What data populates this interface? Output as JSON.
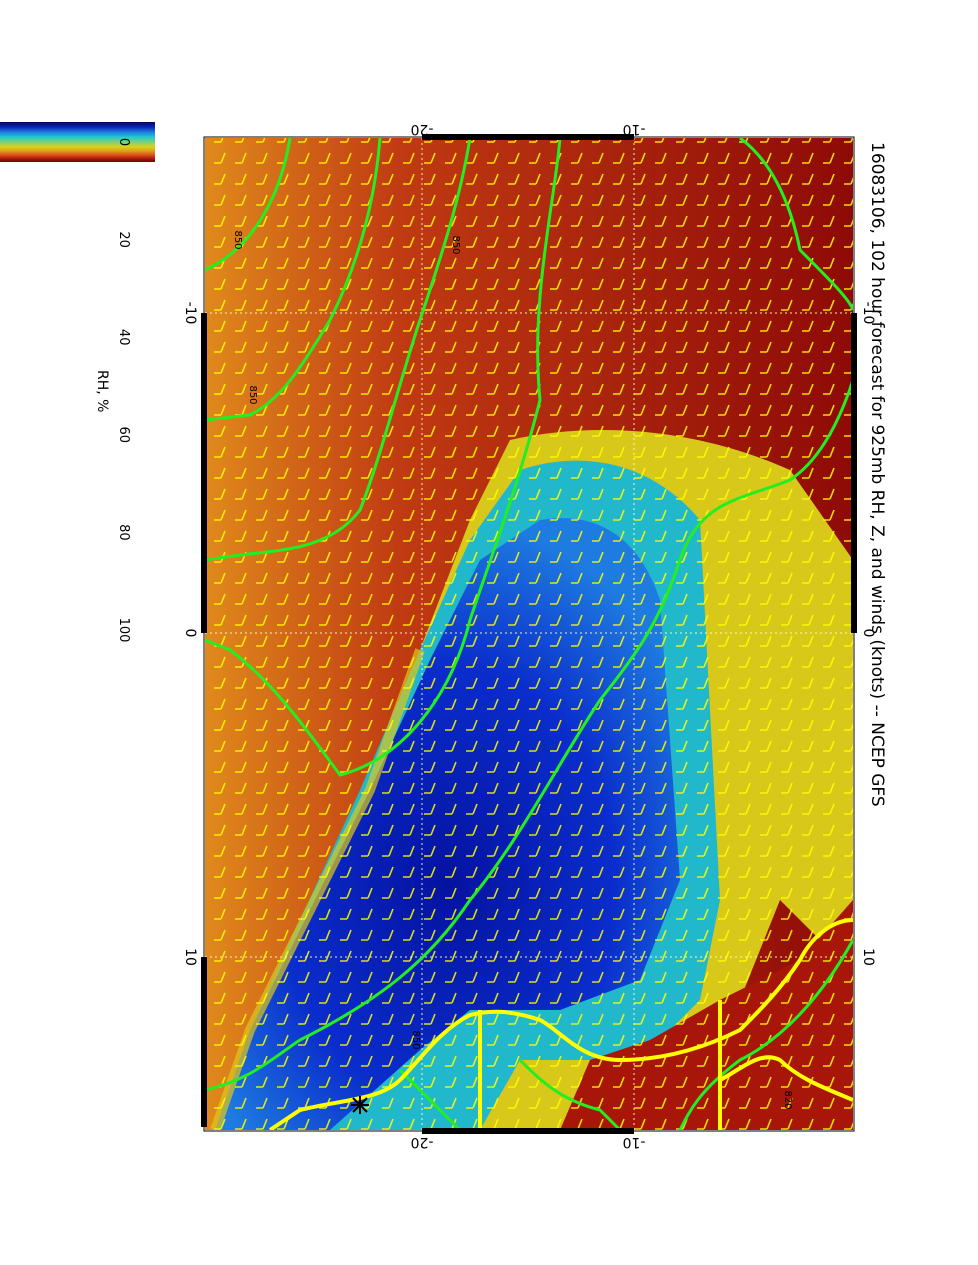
{
  "title": "16083106, 102 hour forecast for 925mb RH, Z, and winds (knots) -- NCEP GFS",
  "colorbar": {
    "label": "RH, %",
    "ticks": [
      "0",
      "20",
      "40",
      "60",
      "80",
      "100"
    ],
    "stops": [
      "#07065e",
      "#0a1fb8",
      "#1e7be0",
      "#22cccc",
      "#8ad16a",
      "#d8d21a",
      "#e0a11a",
      "#d8461c",
      "#a0150a",
      "#6a0404"
    ]
  },
  "map": {
    "top_ticks": [
      "-20",
      "-10"
    ],
    "bottom_ticks": [
      "-20",
      "-10"
    ],
    "left_ticks": [
      "-10",
      "0",
      "10"
    ],
    "right_ticks": [
      "-10",
      "0",
      "10"
    ],
    "contour_labels": [
      "850",
      "850",
      "850",
      "850",
      "820"
    ]
  },
  "colors": {
    "contour": "#22ee22",
    "coast": "#ffff00",
    "wind_barb": "#ffff00",
    "grid": "#ffffcc"
  },
  "icons": [
    "station-star-icon"
  ]
}
